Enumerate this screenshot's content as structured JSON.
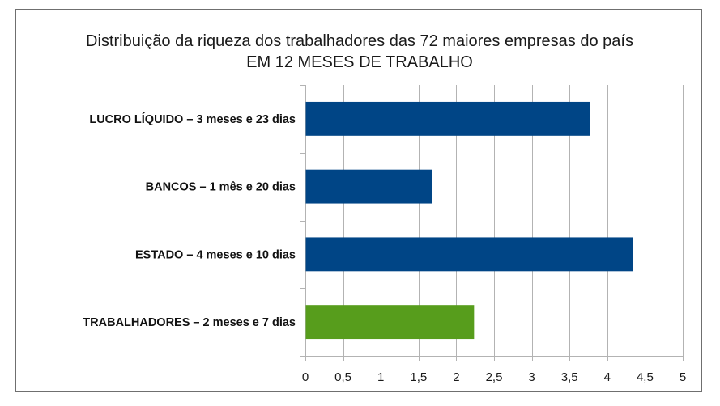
{
  "chart_data": {
    "type": "bar",
    "orientation": "horizontal",
    "title_line1": "Distribuição da riqueza dos trabalhadores das 72 maiores empresas do país",
    "title_line2": "EM 12 MESES DE TRABALHO",
    "categories": [
      "LUCRO LÍQUIDO – 3 meses e 23 dias",
      "BANCOS – 1 mês e 20 dias",
      "ESTADO – 4 meses e 10 dias",
      "TRABALHADORES – 2 meses e 7 dias"
    ],
    "values": [
      3.77,
      1.67,
      4.33,
      2.23
    ],
    "colors": [
      "#004586",
      "#004586",
      "#004586",
      "#579d1c"
    ],
    "xlim": [
      0,
      5
    ],
    "xticks": [
      0,
      0.5,
      1,
      1.5,
      2,
      2.5,
      3,
      3.5,
      4,
      4.5,
      5
    ],
    "xtick_labels": [
      "0",
      "0,5",
      "1",
      "1,5",
      "2",
      "2,5",
      "3",
      "3,5",
      "4",
      "4,5",
      "5"
    ],
    "grid": true,
    "legend": "none"
  }
}
